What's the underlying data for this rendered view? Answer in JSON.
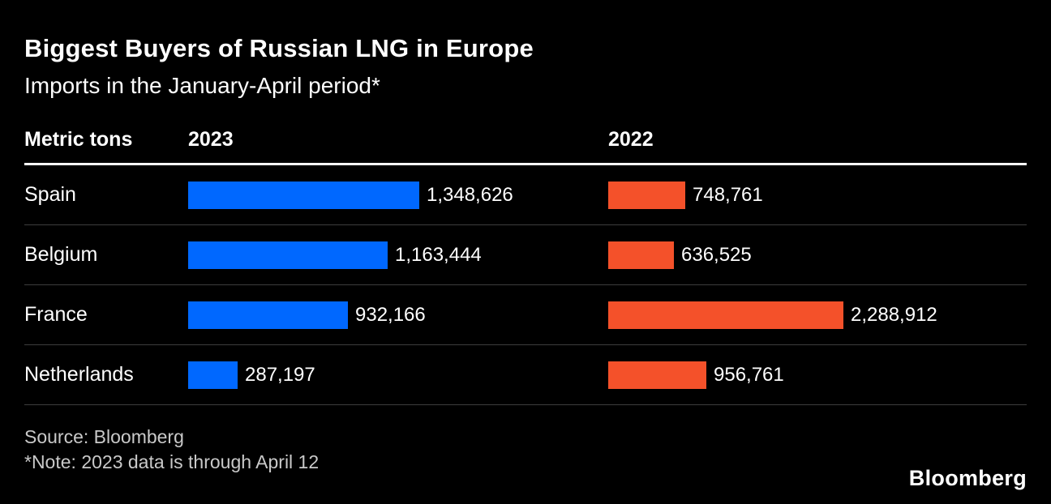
{
  "header": {
    "title": "Biggest Buyers of Russian LNG in Europe",
    "subtitle": "Imports in the January-April period*"
  },
  "columns": {
    "metric_label": "Metric tons",
    "col_2023": "2023",
    "col_2022": "2022"
  },
  "chart_data": {
    "type": "bar",
    "orientation": "horizontal",
    "title": "Biggest Buyers of Russian LNG in Europe",
    "subtitle": "Imports in the January-April period*",
    "unit_label": "Metric tons",
    "categories": [
      "Spain",
      "Belgium",
      "France",
      "Netherlands"
    ],
    "series": [
      {
        "name": "2023",
        "color": "#0068ff",
        "values": [
          1348626,
          1163444,
          932166,
          287197
        ],
        "labels": [
          "1,348,626",
          "1,163,444",
          "932,166",
          "287,197"
        ]
      },
      {
        "name": "2022",
        "color": "#f4512a",
        "values": [
          748761,
          636525,
          2288912,
          956761
        ],
        "labels": [
          "748,761",
          "636,525",
          "2,288,912",
          "956,761"
        ]
      }
    ],
    "scale_note": "each year column scaled independently to its max value",
    "legend_position": "column-headers",
    "grid": false
  },
  "footer": {
    "source": "Source: Bloomberg",
    "note": "*Note: 2023 data is through April 12",
    "logo": "Bloomberg"
  }
}
